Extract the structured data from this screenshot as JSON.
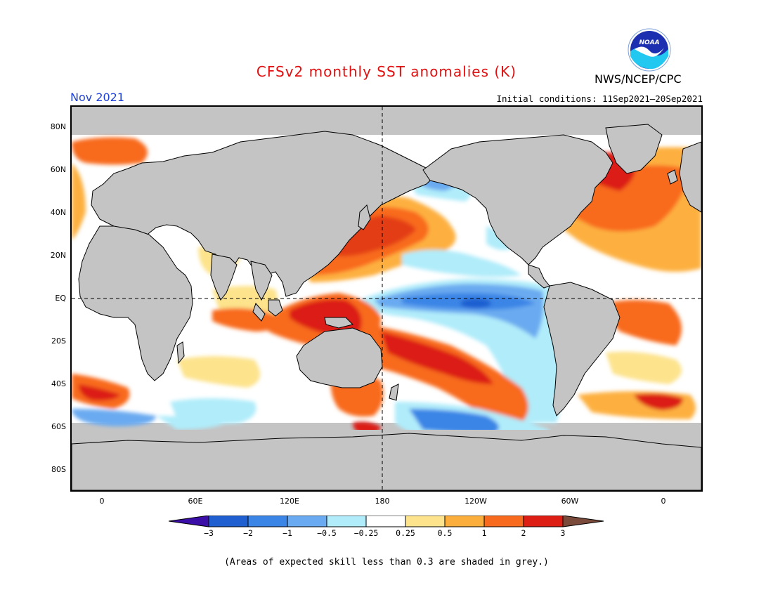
{
  "header": {
    "title": "CFSv2 monthly SST anomalies (K)",
    "agency": "NWS/NCEP/CPC",
    "logo_text": "NOAA",
    "period": "Nov 2021",
    "initial_conditions": "Initial conditions: 11Sep2021–20Sep2021"
  },
  "axes": {
    "lat_labels": [
      "80N",
      "60N",
      "40N",
      "20N",
      "EQ",
      "20S",
      "40S",
      "60S",
      "80S"
    ],
    "lon_labels": [
      "0",
      "60E",
      "120E",
      "180",
      "120W",
      "60W",
      "0"
    ]
  },
  "colorbar": {
    "labels": [
      "−3",
      "−2",
      "−1",
      "−0.5",
      "−0.25",
      "0.25",
      "0.5",
      "1",
      "2",
      "3"
    ],
    "colors": [
      "#3c0ea8",
      "#1f5fd0",
      "#3b85e6",
      "#6aaaf0",
      "#b0ecfa",
      "#ffffff",
      "#fde38c",
      "#fcae3c",
      "#f86a1e",
      "#dc1e14",
      "#a80a0a",
      "#7a4a3a"
    ]
  },
  "map_colors": {
    "land": "#c4c4c4",
    "low_skill": "#c4c4c4",
    "coast": "#000000"
  },
  "footnote": "(Areas of expected skill less than 0.3 are shaded in grey.)"
}
